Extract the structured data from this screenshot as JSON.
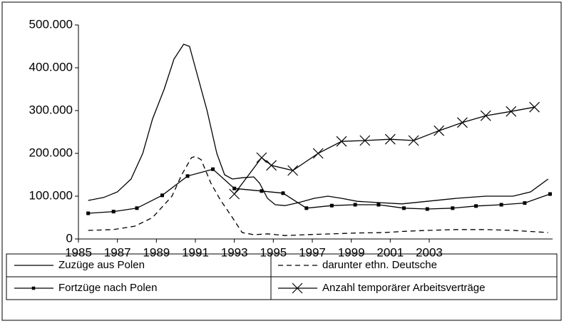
{
  "chart_data": {
    "type": "line",
    "xlim": [
      1985,
      2009.33
    ],
    "xticks": [
      1985,
      1987,
      1989,
      1991,
      1993,
      1995,
      1997,
      1999,
      2001,
      2003
    ],
    "ylim": [
      0,
      500000
    ],
    "yticks": [
      0,
      {
        "value": 100000,
        "label": "100.000"
      },
      {
        "value": 200000,
        "label": "200.000"
      },
      {
        "value": 300000,
        "label": "300.000"
      },
      {
        "value": 400000,
        "label": "400.000"
      },
      {
        "value": 500000,
        "label": "500.000"
      }
    ],
    "series": [
      {
        "name": "Zuzüge aus Polen",
        "color": "#000000",
        "style": "solid",
        "marker": "none",
        "x": [
          1985.5,
          1986.3,
          1987.0,
          1987.7,
          1988.3,
          1988.8,
          1989.4,
          1989.9,
          1990.4,
          1990.7,
          1991.0,
          1991.6,
          1992.1,
          1992.5,
          1992.9,
          1993.4,
          1994.0,
          1994.3,
          1994.7,
          1995.1,
          1995.6,
          1996.3,
          1997.1,
          1997.8,
          1998.5,
          1999.3,
          2000.4,
          2001.6,
          2002.9,
          2004.4,
          2005.9,
          2007.3,
          2008.2,
          2009.1
        ],
        "values": [
          90000,
          97000,
          110000,
          140000,
          200000,
          280000,
          350000,
          420000,
          455000,
          450000,
          400000,
          300000,
          200000,
          150000,
          140000,
          143000,
          145000,
          130000,
          95000,
          80000,
          78000,
          85000,
          95000,
          100000,
          95000,
          88000,
          85000,
          82000,
          88000,
          95000,
          100000,
          100000,
          110000,
          140000
        ]
      },
      {
        "name": "darunter ethn. Deutsche",
        "color": "#000000",
        "style": "dashed",
        "marker": "none",
        "x": [
          1985.5,
          1986.8,
          1987.9,
          1988.8,
          1989.8,
          1990.3,
          1990.8,
          1991.0,
          1991.3,
          1991.8,
          1992.3,
          1992.9,
          1993.4,
          1994.0,
          1994.7,
          1995.6,
          1996.7,
          1998.0,
          1999.3,
          2000.7,
          2001.8,
          2002.9,
          2004.4,
          2005.9,
          2007.3,
          2009.1
        ],
        "values": [
          20000,
          22000,
          30000,
          50000,
          100000,
          150000,
          190000,
          193000,
          185000,
          130000,
          90000,
          50000,
          15000,
          10000,
          12000,
          8000,
          10000,
          12000,
          14000,
          15000,
          18000,
          20000,
          22000,
          22000,
          20000,
          15000
        ]
      },
      {
        "name": "Fortzüge nach Polen",
        "color": "#000000",
        "style": "solid",
        "marker": "square",
        "x": [
          1985.5,
          1986.8,
          1988.0,
          1989.3,
          1990.6,
          1991.9,
          1993.0,
          1994.4,
          1995.5,
          1996.7,
          1998.0,
          1999.2,
          2000.4,
          2001.7,
          2002.9,
          2004.2,
          2005.4,
          2006.7,
          2007.9,
          2009.2
        ],
        "values": [
          60000,
          64000,
          72000,
          102000,
          147000,
          163000,
          118000,
          112000,
          107000,
          72000,
          78000,
          80000,
          80000,
          72000,
          70000,
          72000,
          77000,
          80000,
          84000,
          105000
        ]
      },
      {
        "name": "Anzahl temporärer Arbeitsverträge",
        "color": "#000000",
        "style": "solid",
        "marker": "x",
        "x": [
          1993.0,
          1994.4,
          1994.9,
          1996.0,
          1997.3,
          1998.5,
          1999.7,
          2001.0,
          2002.2,
          2003.5,
          2004.7,
          2005.9,
          2007.2,
          2008.4
        ],
        "values": [
          105000,
          190000,
          172000,
          160000,
          200000,
          228000,
          230000,
          233000,
          230000,
          253000,
          272000,
          288000,
          298000,
          308000
        ]
      }
    ]
  }
}
